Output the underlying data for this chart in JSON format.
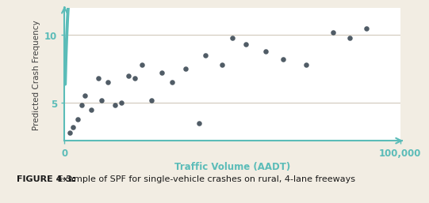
{
  "xlabel": "Traffic Volume (AADT)",
  "ylabel": "Predicted Crash Frequency",
  "xlim": [
    0,
    100000
  ],
  "ylim": [
    2.2,
    12.0
  ],
  "yticks": [
    5,
    10
  ],
  "xticks": [
    0,
    100000
  ],
  "xticklabels": [
    "0",
    "100,000"
  ],
  "background_color": "#f2ede3",
  "plot_bg_color": "#ffffff",
  "curve_color": "#5bbcb8",
  "scatter_color": "#3d4a55",
  "axis_color": "#5bbcb8",
  "tick_label_color": "#5bbcb8",
  "xlabel_color": "#5bbcb8",
  "ylabel_color": "#404040",
  "caption_bold": "FIGURE 4-3:",
  "caption_normal": " Example of SPF for single-vehicle crashes on rural, 4-lane freeways",
  "scatter_x": [
    1500,
    2500,
    4000,
    5000,
    6000,
    8000,
    10000,
    11000,
    13000,
    15000,
    17000,
    19000,
    21000,
    23000,
    26000,
    29000,
    32000,
    36000,
    40000,
    42000,
    47000,
    50000,
    54000,
    60000,
    65000,
    72000,
    80000,
    85000,
    90000
  ],
  "scatter_y": [
    2.8,
    3.2,
    3.8,
    4.8,
    5.5,
    4.5,
    6.8,
    5.2,
    6.5,
    4.8,
    5.0,
    7.0,
    6.8,
    7.8,
    5.2,
    7.2,
    6.5,
    7.5,
    3.5,
    8.5,
    7.8,
    9.8,
    9.3,
    8.8,
    8.2,
    7.8,
    10.2,
    9.8,
    10.5
  ],
  "spf_a": 0.85,
  "spf_b": 0.38,
  "grid_color": "#d0c8ba",
  "caption_fontsize": 8.0
}
